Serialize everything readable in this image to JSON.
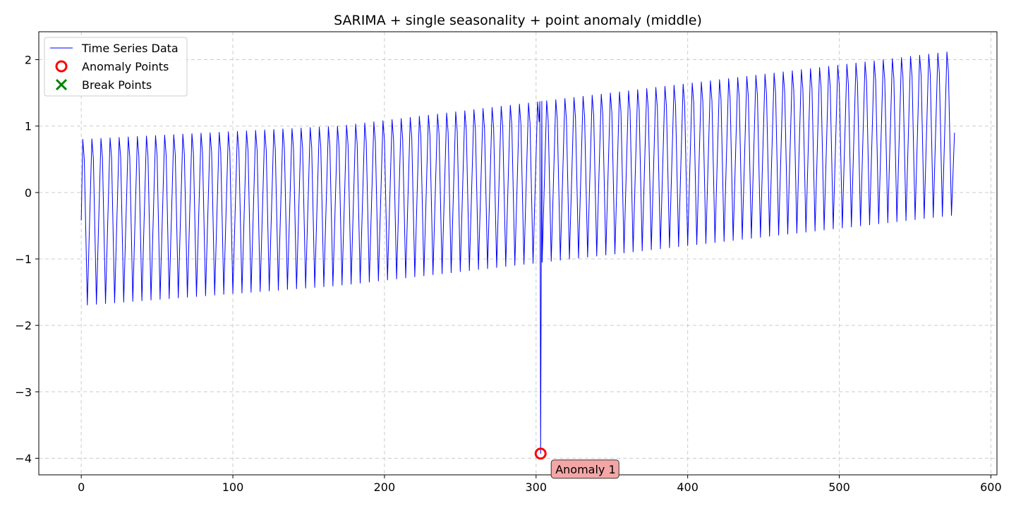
{
  "chart_data": {
    "type": "line",
    "title": "SARIMA + single seasonality + point anomaly (middle)",
    "xlabel": "",
    "ylabel": "",
    "xlim": [
      -28,
      604
    ],
    "ylim": [
      -4.25,
      2.42
    ],
    "x_ticks": [
      0,
      100,
      200,
      300,
      400,
      500,
      600
    ],
    "y_ticks": [
      -4,
      -3,
      -2,
      -1,
      0,
      1,
      2
    ],
    "x_tick_labels": [
      "0",
      "100",
      "200",
      "300",
      "400",
      "500",
      "600"
    ],
    "y_tick_labels": [
      "−4",
      "−3",
      "−2",
      "−1",
      "0",
      "1",
      "2"
    ],
    "grid": true,
    "legend_placement": "top-left",
    "series": [
      {
        "name": "Time Series Data",
        "kind": "line",
        "color": "#0000ff",
        "points": [
          [
            0,
            -0.42
          ],
          [
            1,
            0.8
          ],
          [
            2,
            0.55
          ],
          [
            3,
            0.2
          ],
          [
            4,
            -1.25
          ],
          [
            5,
            -1.7
          ],
          [
            576,
            0.9
          ]
        ],
        "pattern": {
          "period": 6,
          "start_x": 0,
          "end_x": 576,
          "peak_offset": 1,
          "trough_offset": 4,
          "peak_start": 0.8,
          "peak_end": 2.13,
          "trough_start": -1.7,
          "trough_end": -0.34,
          "trend_break_x": 170
        },
        "anomaly_x": 303,
        "anomaly_y": -3.93
      },
      {
        "name": "Anomaly Points",
        "kind": "marker-circle",
        "color": "#ff0000",
        "points": [
          [
            303,
            -3.93
          ]
        ]
      },
      {
        "name": "Break Points",
        "kind": "marker-x",
        "color": "#008000",
        "points": []
      }
    ],
    "annotations": [
      {
        "text": "Anomaly 1",
        "x": 303,
        "y": -3.93,
        "box_color": "#f4a6a6",
        "border_color": "#333333"
      }
    ]
  }
}
